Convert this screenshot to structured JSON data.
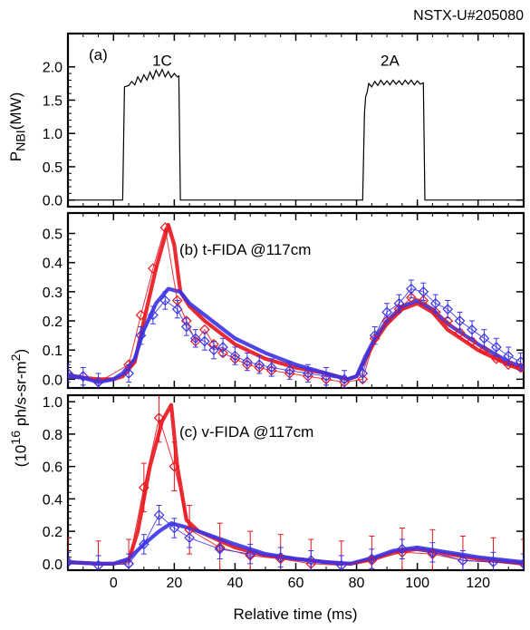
{
  "shot_label": "NSTX-U#205080",
  "xlabel": "Relative time (ms)",
  "shared_ylabel": "(10<sup>16</sup> ph/s-sr-m<sup>2</sup>)",
  "chart_data": [
    {
      "id": "a",
      "type": "line",
      "panel_label": "(a)",
      "ylabel": "P<sub>NBI</sub>(MW)",
      "xlim": [
        -15,
        135
      ],
      "ylim": [
        -0.1,
        2.5
      ],
      "yticks": [
        0.0,
        0.5,
        1.0,
        1.5,
        2.0
      ],
      "ytick_labels": [
        "0.0",
        "0.5",
        "1.0",
        "1.5",
        "2.0"
      ],
      "annotations": [
        {
          "text": "1C",
          "x": 16,
          "y": 2.02
        },
        {
          "text": "2A",
          "x": 91,
          "y": 2.02
        }
      ],
      "series": [
        {
          "color": "#000000",
          "points": [
            [
              -15,
              0
            ],
            [
              3,
              0
            ],
            [
              3.6,
              1.7
            ],
            [
              5,
              1.72
            ],
            [
              6,
              1.78
            ],
            [
              7,
              1.73
            ],
            [
              8,
              1.85
            ],
            [
              9,
              1.77
            ],
            [
              10,
              1.88
            ],
            [
              11,
              1.8
            ],
            [
              12,
              1.92
            ],
            [
              13,
              1.82
            ],
            [
              14,
              1.95
            ],
            [
              15,
              1.86
            ],
            [
              16,
              1.96
            ],
            [
              17,
              1.85
            ],
            [
              18,
              1.93
            ],
            [
              19,
              1.84
            ],
            [
              20,
              1.9
            ],
            [
              21,
              1.85
            ],
            [
              21.5,
              1.86
            ],
            [
              22,
              0
            ],
            [
              82,
              0
            ],
            [
              82.6,
              1.3
            ],
            [
              83,
              1.55
            ],
            [
              83.5,
              1.62
            ],
            [
              84,
              1.75
            ],
            [
              85,
              1.7
            ],
            [
              86,
              1.78
            ],
            [
              87,
              1.72
            ],
            [
              88,
              1.8
            ],
            [
              89,
              1.73
            ],
            [
              90,
              1.79
            ],
            [
              91,
              1.73
            ],
            [
              92,
              1.8
            ],
            [
              93,
              1.74
            ],
            [
              94,
              1.79
            ],
            [
              95,
              1.73
            ],
            [
              96,
              1.8
            ],
            [
              97,
              1.74
            ],
            [
              98,
              1.8
            ],
            [
              99,
              1.73
            ],
            [
              100,
              1.79
            ],
            [
              101,
              1.74
            ],
            [
              102,
              1.76
            ],
            [
              102.5,
              0
            ],
            [
              135,
              0
            ]
          ]
        }
      ]
    },
    {
      "id": "b",
      "type": "line",
      "panel_label": "(b) t-FIDA @117cm",
      "xlim": [
        -15,
        135
      ],
      "ylim": [
        -0.03,
        0.57
      ],
      "yticks": [
        0.0,
        0.1,
        0.2,
        0.3,
        0.4,
        0.5
      ],
      "ytick_labels": [
        "0.0",
        "0.1",
        "0.2",
        "0.3",
        "0.4",
        "0.5"
      ],
      "xticks": [
        0,
        20,
        40,
        60,
        80,
        100,
        120
      ],
      "series": [
        {
          "color": "#e8141c",
          "style": "thick",
          "points": [
            [
              -15,
              0.01
            ],
            [
              -10,
              0.005
            ],
            [
              -5,
              0
            ],
            [
              0,
              0
            ],
            [
              3,
              0.01
            ],
            [
              7,
              0.06
            ],
            [
              10,
              0.2
            ],
            [
              14,
              0.38
            ],
            [
              18,
              0.53
            ],
            [
              20,
              0.46
            ],
            [
              22,
              0.3
            ],
            [
              25,
              0.25
            ],
            [
              30,
              0.2
            ],
            [
              40,
              0.12
            ],
            [
              50,
              0.07
            ],
            [
              60,
              0.04
            ],
            [
              70,
              0.02
            ],
            [
              77,
              0
            ],
            [
              80,
              0.01
            ],
            [
              83,
              0.07
            ],
            [
              86,
              0.13
            ],
            [
              90,
              0.19
            ],
            [
              95,
              0.24
            ],
            [
              100,
              0.26
            ],
            [
              105,
              0.23
            ],
            [
              110,
              0.17
            ],
            [
              120,
              0.1
            ],
            [
              130,
              0.05
            ],
            [
              135,
              0.03
            ]
          ]
        },
        {
          "color": "#3a33e6",
          "style": "thick",
          "points": [
            [
              -15,
              0.01
            ],
            [
              -10,
              0.005
            ],
            [
              -5,
              -0.01
            ],
            [
              0,
              0
            ],
            [
              3,
              0.02
            ],
            [
              7,
              0.07
            ],
            [
              10,
              0.17
            ],
            [
              14,
              0.26
            ],
            [
              18,
              0.31
            ],
            [
              22,
              0.3
            ],
            [
              25,
              0.26
            ],
            [
              30,
              0.22
            ],
            [
              40,
              0.14
            ],
            [
              50,
              0.09
            ],
            [
              60,
              0.05
            ],
            [
              70,
              0.02
            ],
            [
              77,
              0
            ],
            [
              80,
              0.01
            ],
            [
              83,
              0.08
            ],
            [
              86,
              0.14
            ],
            [
              90,
              0.2
            ],
            [
              95,
              0.25
            ],
            [
              100,
              0.27
            ],
            [
              105,
              0.24
            ],
            [
              110,
              0.19
            ],
            [
              120,
              0.12
            ],
            [
              130,
              0.06
            ],
            [
              135,
              0.04
            ]
          ]
        },
        {
          "color": "#e8141c",
          "style": "markers",
          "points": [
            [
              -15,
              0.02
            ],
            [
              -10,
              0.01
            ],
            [
              -5,
              -0.01
            ],
            [
              5,
              0.05
            ],
            [
              9,
              0.22
            ],
            [
              13,
              0.38
            ],
            [
              17,
              0.52
            ],
            [
              21,
              0.27
            ],
            [
              24,
              0.2
            ],
            [
              27,
              0.13
            ],
            [
              30,
              0.17
            ],
            [
              33,
              0.12
            ],
            [
              36,
              0.09
            ],
            [
              40,
              0.07
            ],
            [
              44,
              0.05
            ],
            [
              48,
              0.04
            ],
            [
              52,
              0.03
            ],
            [
              58,
              0.02
            ],
            [
              64,
              0.01
            ],
            [
              70,
              0
            ],
            [
              76,
              -0.01
            ],
            [
              82,
              0
            ],
            [
              86,
              0.14
            ],
            [
              90,
              0.2
            ],
            [
              94,
              0.24
            ],
            [
              98,
              0.28
            ],
            [
              102,
              0.27
            ],
            [
              106,
              0.23
            ],
            [
              110,
              0.2
            ],
            [
              114,
              0.16
            ],
            [
              118,
              0.13
            ],
            [
              122,
              0.1
            ],
            [
              126,
              0.07
            ],
            [
              130,
              0.05
            ],
            [
              134,
              0.04
            ]
          ]
        },
        {
          "color": "#3a33e6",
          "style": "markers_err",
          "err": 0.03,
          "points": [
            [
              -15,
              0.02
            ],
            [
              -10,
              0.01
            ],
            [
              -5,
              -0.01
            ],
            [
              5,
              0.02
            ],
            [
              9,
              0.15
            ],
            [
              13,
              0.22
            ],
            [
              17,
              0.27
            ],
            [
              21,
              0.24
            ],
            [
              24,
              0.18
            ],
            [
              27,
              0.14
            ],
            [
              30,
              0.13
            ],
            [
              33,
              0.1
            ],
            [
              36,
              0.11
            ],
            [
              40,
              0.08
            ],
            [
              44,
              0.06
            ],
            [
              48,
              0.05
            ],
            [
              52,
              0.04
            ],
            [
              58,
              0.03
            ],
            [
              64,
              0.02
            ],
            [
              70,
              0.01
            ],
            [
              76,
              0
            ],
            [
              82,
              0.02
            ],
            [
              86,
              0.15
            ],
            [
              90,
              0.23
            ],
            [
              94,
              0.26
            ],
            [
              98,
              0.31
            ],
            [
              102,
              0.3
            ],
            [
              106,
              0.26
            ],
            [
              110,
              0.24
            ],
            [
              114,
              0.2
            ],
            [
              118,
              0.17
            ],
            [
              122,
              0.14
            ],
            [
              126,
              0.11
            ],
            [
              130,
              0.08
            ],
            [
              134,
              0.06
            ]
          ]
        }
      ]
    },
    {
      "id": "c",
      "type": "line",
      "panel_label": "(c) v-FIDA @117cm",
      "xlim": [
        -15,
        135
      ],
      "ylim": [
        -0.04,
        1.04
      ],
      "yticks": [
        0.0,
        0.2,
        0.4,
        0.6,
        0.8,
        1.0
      ],
      "ytick_labels": [
        "0.0",
        "0.2",
        "0.4",
        "0.6",
        "0.8",
        "1.0"
      ],
      "xticks": [
        0,
        20,
        40,
        60,
        80,
        100,
        120
      ],
      "xtick_labels": [
        "0",
        "20",
        "40",
        "60",
        "80",
        "100",
        "120"
      ],
      "series": [
        {
          "color": "#e8141c",
          "style": "thick",
          "points": [
            [
              -15,
              0.01
            ],
            [
              -5,
              0
            ],
            [
              0,
              0
            ],
            [
              5,
              0.02
            ],
            [
              8,
              0.2
            ],
            [
              12,
              0.6
            ],
            [
              16,
              0.88
            ],
            [
              19,
              0.98
            ],
            [
              21,
              0.6
            ],
            [
              24,
              0.27
            ],
            [
              28,
              0.2
            ],
            [
              40,
              0.1
            ],
            [
              50,
              0.05
            ],
            [
              60,
              0.03
            ],
            [
              70,
              0.01
            ],
            [
              78,
              0
            ],
            [
              86,
              0.03
            ],
            [
              92,
              0.07
            ],
            [
              100,
              0.09
            ],
            [
              110,
              0.06
            ],
            [
              120,
              0.03
            ],
            [
              135,
              0
            ]
          ]
        },
        {
          "color": "#3a33e6",
          "style": "thick",
          "points": [
            [
              -15,
              0.01
            ],
            [
              -5,
              0
            ],
            [
              0,
              0
            ],
            [
              5,
              0.03
            ],
            [
              10,
              0.12
            ],
            [
              15,
              0.2
            ],
            [
              19,
              0.25
            ],
            [
              23,
              0.23
            ],
            [
              28,
              0.2
            ],
            [
              40,
              0.12
            ],
            [
              50,
              0.06
            ],
            [
              60,
              0.03
            ],
            [
              70,
              0.01
            ],
            [
              78,
              0
            ],
            [
              86,
              0.04
            ],
            [
              92,
              0.08
            ],
            [
              100,
              0.1
            ],
            [
              110,
              0.07
            ],
            [
              120,
              0.04
            ],
            [
              135,
              0.01
            ]
          ]
        },
        {
          "color": "#e8141c",
          "style": "markers_err",
          "err": 0.15,
          "points": [
            [
              -15,
              0.01
            ],
            [
              -5,
              -0.01
            ],
            [
              5,
              0
            ],
            [
              10,
              0.47
            ],
            [
              15,
              0.9
            ],
            [
              20,
              0.6
            ],
            [
              25,
              0.21
            ],
            [
              35,
              0.1
            ],
            [
              45,
              0.05
            ],
            [
              55,
              0.03
            ],
            [
              65,
              0
            ],
            [
              75,
              -0.01
            ],
            [
              85,
              0.02
            ],
            [
              95,
              0.07
            ],
            [
              105,
              0.06
            ],
            [
              115,
              0.02
            ],
            [
              125,
              0.01
            ],
            [
              135,
              0
            ]
          ]
        },
        {
          "color": "#3a33e6",
          "style": "markers_err",
          "err": 0.06,
          "points": [
            [
              -15,
              0.01
            ],
            [
              -5,
              -0.01
            ],
            [
              5,
              0
            ],
            [
              10,
              0.12
            ],
            [
              15,
              0.3
            ],
            [
              20,
              0.22
            ],
            [
              25,
              0.16
            ],
            [
              35,
              0.09
            ],
            [
              45,
              0.06
            ],
            [
              55,
              0.04
            ],
            [
              65,
              0.02
            ],
            [
              75,
              -0.01
            ],
            [
              85,
              0.03
            ],
            [
              95,
              0.09
            ],
            [
              105,
              0.07
            ],
            [
              115,
              0.02
            ],
            [
              125,
              0.01
            ],
            [
              135,
              0
            ]
          ]
        }
      ]
    }
  ]
}
